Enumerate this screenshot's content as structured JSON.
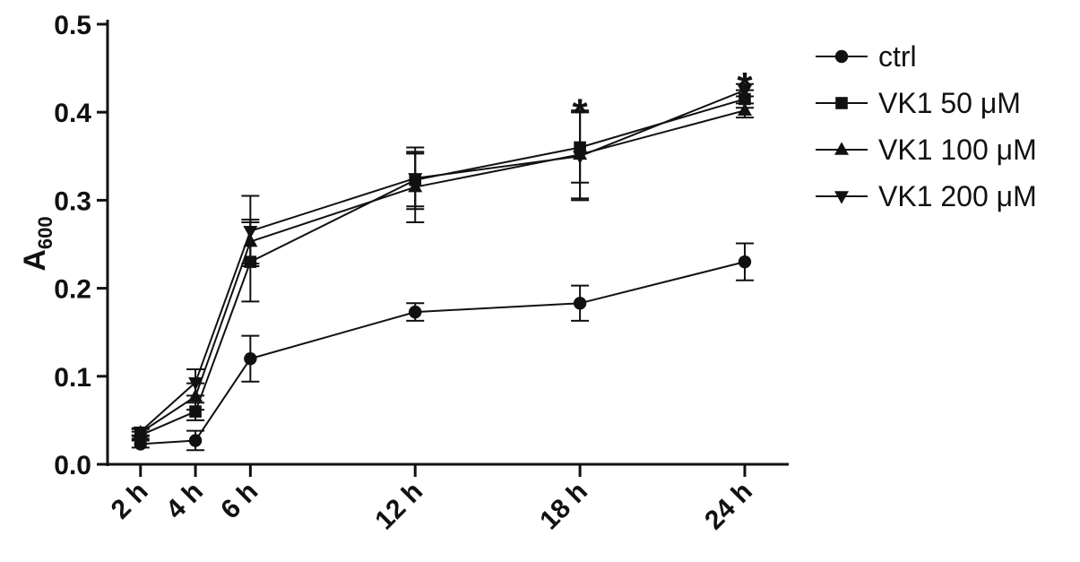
{
  "chart_data": {
    "type": "line",
    "x_type": "category",
    "categories": [
      "2 h",
      "4 h",
      "6 h",
      "12 h",
      "18 h",
      "24 h"
    ],
    "x": [
      2,
      4,
      6,
      12,
      18,
      24
    ],
    "ylabel_main": "A",
    "ylabel_sub": "600",
    "ylim": [
      0.0,
      0.5
    ],
    "yticks": [
      0.0,
      0.1,
      0.2,
      0.3,
      0.4,
      0.5
    ],
    "ytick_labels": [
      "0.0",
      "0.1",
      "0.2",
      "0.3",
      "0.4",
      "0.5"
    ],
    "grid": false,
    "legend_position": "right",
    "series": [
      {
        "name": "ctrl",
        "marker": "circle",
        "values": [
          0.023,
          0.027,
          0.12,
          0.173,
          0.183,
          0.23
        ],
        "errors": [
          0.004,
          0.011,
          0.026,
          0.01,
          0.02,
          0.021
        ]
      },
      {
        "name": "VK1 50 μM",
        "marker": "square",
        "values": [
          0.033,
          0.06,
          0.23,
          0.323,
          0.36,
          0.415
        ],
        "errors": [
          0.004,
          0.01,
          0.045,
          0.03,
          0.04,
          0.01
        ]
      },
      {
        "name": "VK1 100 μM",
        "marker": "triangle-up",
        "values": [
          0.036,
          0.077,
          0.253,
          0.315,
          0.352,
          0.402
        ],
        "errors": [
          0.004,
          0.015,
          0.025,
          0.04,
          0.05,
          0.008
        ]
      },
      {
        "name": "VK1 200 μM",
        "marker": "triangle-down",
        "values": [
          0.037,
          0.093,
          0.265,
          0.325,
          0.35,
          0.425
        ],
        "errors": [
          0.004,
          0.015,
          0.04,
          0.035,
          0.05,
          0.007
        ]
      }
    ],
    "annotations": [
      {
        "x": 18,
        "y": 0.403,
        "text": "*"
      },
      {
        "x": 24,
        "y": 0.433,
        "text": "*"
      }
    ]
  }
}
